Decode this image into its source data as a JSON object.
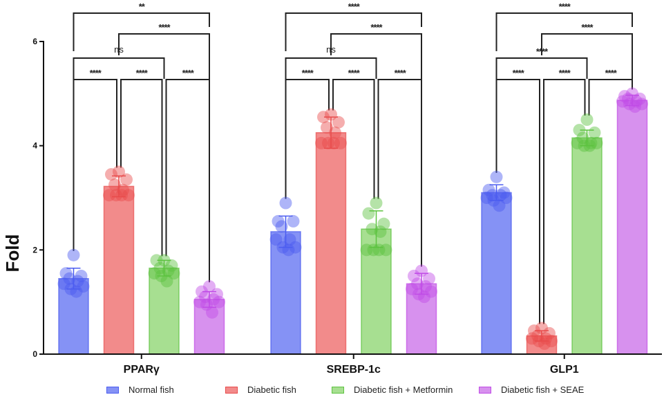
{
  "chart_data": {
    "type": "bar",
    "title": "",
    "xlabel": "",
    "ylabel": "Fold",
    "ylim": [
      0,
      6
    ],
    "yticks": [
      0,
      2,
      4,
      6
    ],
    "grid": false,
    "legend_position": "bottom",
    "categories": [
      "PPARγ",
      "SREBP-1c",
      "GLP1"
    ],
    "series": [
      {
        "name": "Normal fish",
        "color": "#4b5cf0",
        "values": [
          1.45,
          2.35,
          3.1
        ],
        "errors": [
          0.2,
          0.3,
          0.15
        ],
        "points": [
          [
            1.9,
            1.55,
            1.5,
            1.45,
            1.4,
            1.35,
            1.3,
            1.25,
            1.2
          ],
          [
            2.9,
            2.55,
            2.55,
            2.45,
            2.2,
            2.2,
            2.05,
            2.05,
            2.0
          ],
          [
            3.4,
            3.15,
            3.1,
            3.05,
            3.05,
            3.0,
            3.0,
            2.95,
            2.85
          ]
        ]
      },
      {
        "name": "Diabetic fish",
        "color": "#e84b4b",
        "values": [
          3.22,
          4.25,
          0.35
        ],
        "errors": [
          0.2,
          0.3,
          0.1
        ],
        "points": [
          [
            3.5,
            3.45,
            3.35,
            3.25,
            3.15,
            3.05,
            3.05,
            3.05,
            3.05
          ],
          [
            4.6,
            4.55,
            4.45,
            4.35,
            4.25,
            4.05,
            4.05,
            4.05,
            4.05
          ],
          [
            0.5,
            0.45,
            0.4,
            0.35,
            0.3,
            0.3,
            0.25,
            0.25,
            0.2
          ]
        ]
      },
      {
        "name": "Diabetic fish + Metformin",
        "color": "#5cc23f",
        "values": [
          1.65,
          2.4,
          4.15
        ],
        "errors": [
          0.15,
          0.35,
          0.15
        ],
        "points": [
          [
            1.8,
            1.8,
            1.7,
            1.65,
            1.6,
            1.55,
            1.55,
            1.5,
            1.4
          ],
          [
            2.9,
            2.7,
            2.5,
            2.4,
            2.35,
            2.0,
            2.0,
            2.0,
            2.0
          ],
          [
            4.5,
            4.3,
            4.25,
            4.15,
            4.05,
            4.05,
            4.05,
            4.0,
            4.0
          ]
        ]
      },
      {
        "name": "Diabetic fish + SEAE",
        "color": "#c04be6",
        "values": [
          1.05,
          1.35,
          4.87
        ],
        "errors": [
          0.15,
          0.2,
          0.1
        ],
        "points": [
          [
            1.3,
            1.2,
            1.15,
            1.1,
            1.05,
            1.0,
            1.0,
            0.95,
            0.8
          ],
          [
            1.6,
            1.5,
            1.45,
            1.35,
            1.3,
            1.25,
            1.2,
            1.15,
            1.1
          ],
          [
            5.0,
            4.95,
            4.9,
            4.9,
            4.85,
            4.85,
            4.8,
            4.8,
            4.75
          ]
        ]
      }
    ],
    "significance": [
      {
        "category": "PPARγ",
        "comparisons": [
          {
            "a": 0,
            "b": 1,
            "label": "****"
          },
          {
            "a": 1,
            "b": 2,
            "label": "****"
          },
          {
            "a": 2,
            "b": 3,
            "label": "****"
          },
          {
            "a": 0,
            "b": 2,
            "label": "ns"
          },
          {
            "a": 1,
            "b": 3,
            "label": "****"
          },
          {
            "a": 0,
            "b": 3,
            "label": "**"
          }
        ]
      },
      {
        "category": "SREBP-1c",
        "comparisons": [
          {
            "a": 0,
            "b": 1,
            "label": "****"
          },
          {
            "a": 1,
            "b": 2,
            "label": "****"
          },
          {
            "a": 2,
            "b": 3,
            "label": "****"
          },
          {
            "a": 0,
            "b": 2,
            "label": "ns"
          },
          {
            "a": 1,
            "b": 3,
            "label": "****"
          },
          {
            "a": 0,
            "b": 3,
            "label": "****"
          }
        ]
      },
      {
        "category": "GLP1",
        "comparisons": [
          {
            "a": 0,
            "b": 1,
            "label": "****"
          },
          {
            "a": 1,
            "b": 2,
            "label": "****"
          },
          {
            "a": 2,
            "b": 3,
            "label": "****"
          },
          {
            "a": 0,
            "b": 2,
            "label": "****"
          },
          {
            "a": 1,
            "b": 3,
            "label": "****"
          },
          {
            "a": 0,
            "b": 3,
            "label": "****"
          }
        ]
      }
    ]
  }
}
